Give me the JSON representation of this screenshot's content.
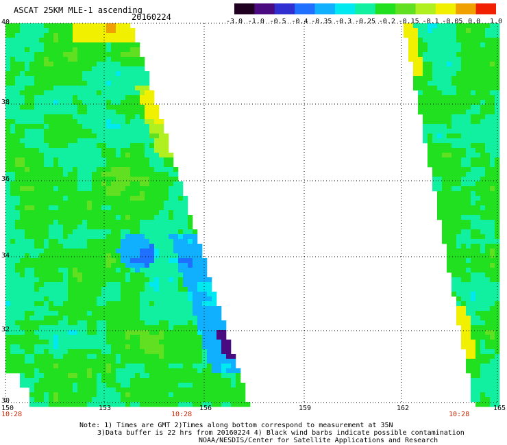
{
  "header": {
    "title": "ASCAT 25KM MLE-1 ascending",
    "date": "20160224"
  },
  "colorbar": {
    "labels": [
      "-3.0",
      "-1.0",
      "-0.5",
      "-0.4",
      "-0.35",
      "-0.3",
      "-0.25",
      "-0.2",
      "-0.15",
      "-0.1",
      "-0.05",
      "0.0",
      "1.0"
    ],
    "colors": [
      "#200020",
      "#4a0a80",
      "#3030d0",
      "#2070ff",
      "#10b0ff",
      "#00e8f0",
      "#10f0a0",
      "#20e020",
      "#60e020",
      "#b0f020",
      "#f0f000",
      "#f0a000",
      "#f02000"
    ]
  },
  "axes": {
    "lat_labels": [
      "40",
      "38",
      "36",
      "34",
      "32",
      "30"
    ],
    "lon_labels": [
      "150",
      "153",
      "156",
      "159",
      "162",
      "165"
    ],
    "time_labels": [
      "10:28",
      "10:28",
      "10:28"
    ]
  },
  "notes": {
    "line1": "Note: 1) Times are GMT 2)Times along bottom correspond to measurement at 35N",
    "line2": "3)Data buffer is 22 hrs from 20160224 4) Black wind barbs indicate possible contamination",
    "line3": "NOAA/NESDIS/Center for Satellite Applications and Research"
  },
  "map_data": {
    "lat_range": [
      30,
      40
    ],
    "lon_range": [
      150,
      165
    ],
    "swaths": [
      "left",
      "right"
    ]
  }
}
